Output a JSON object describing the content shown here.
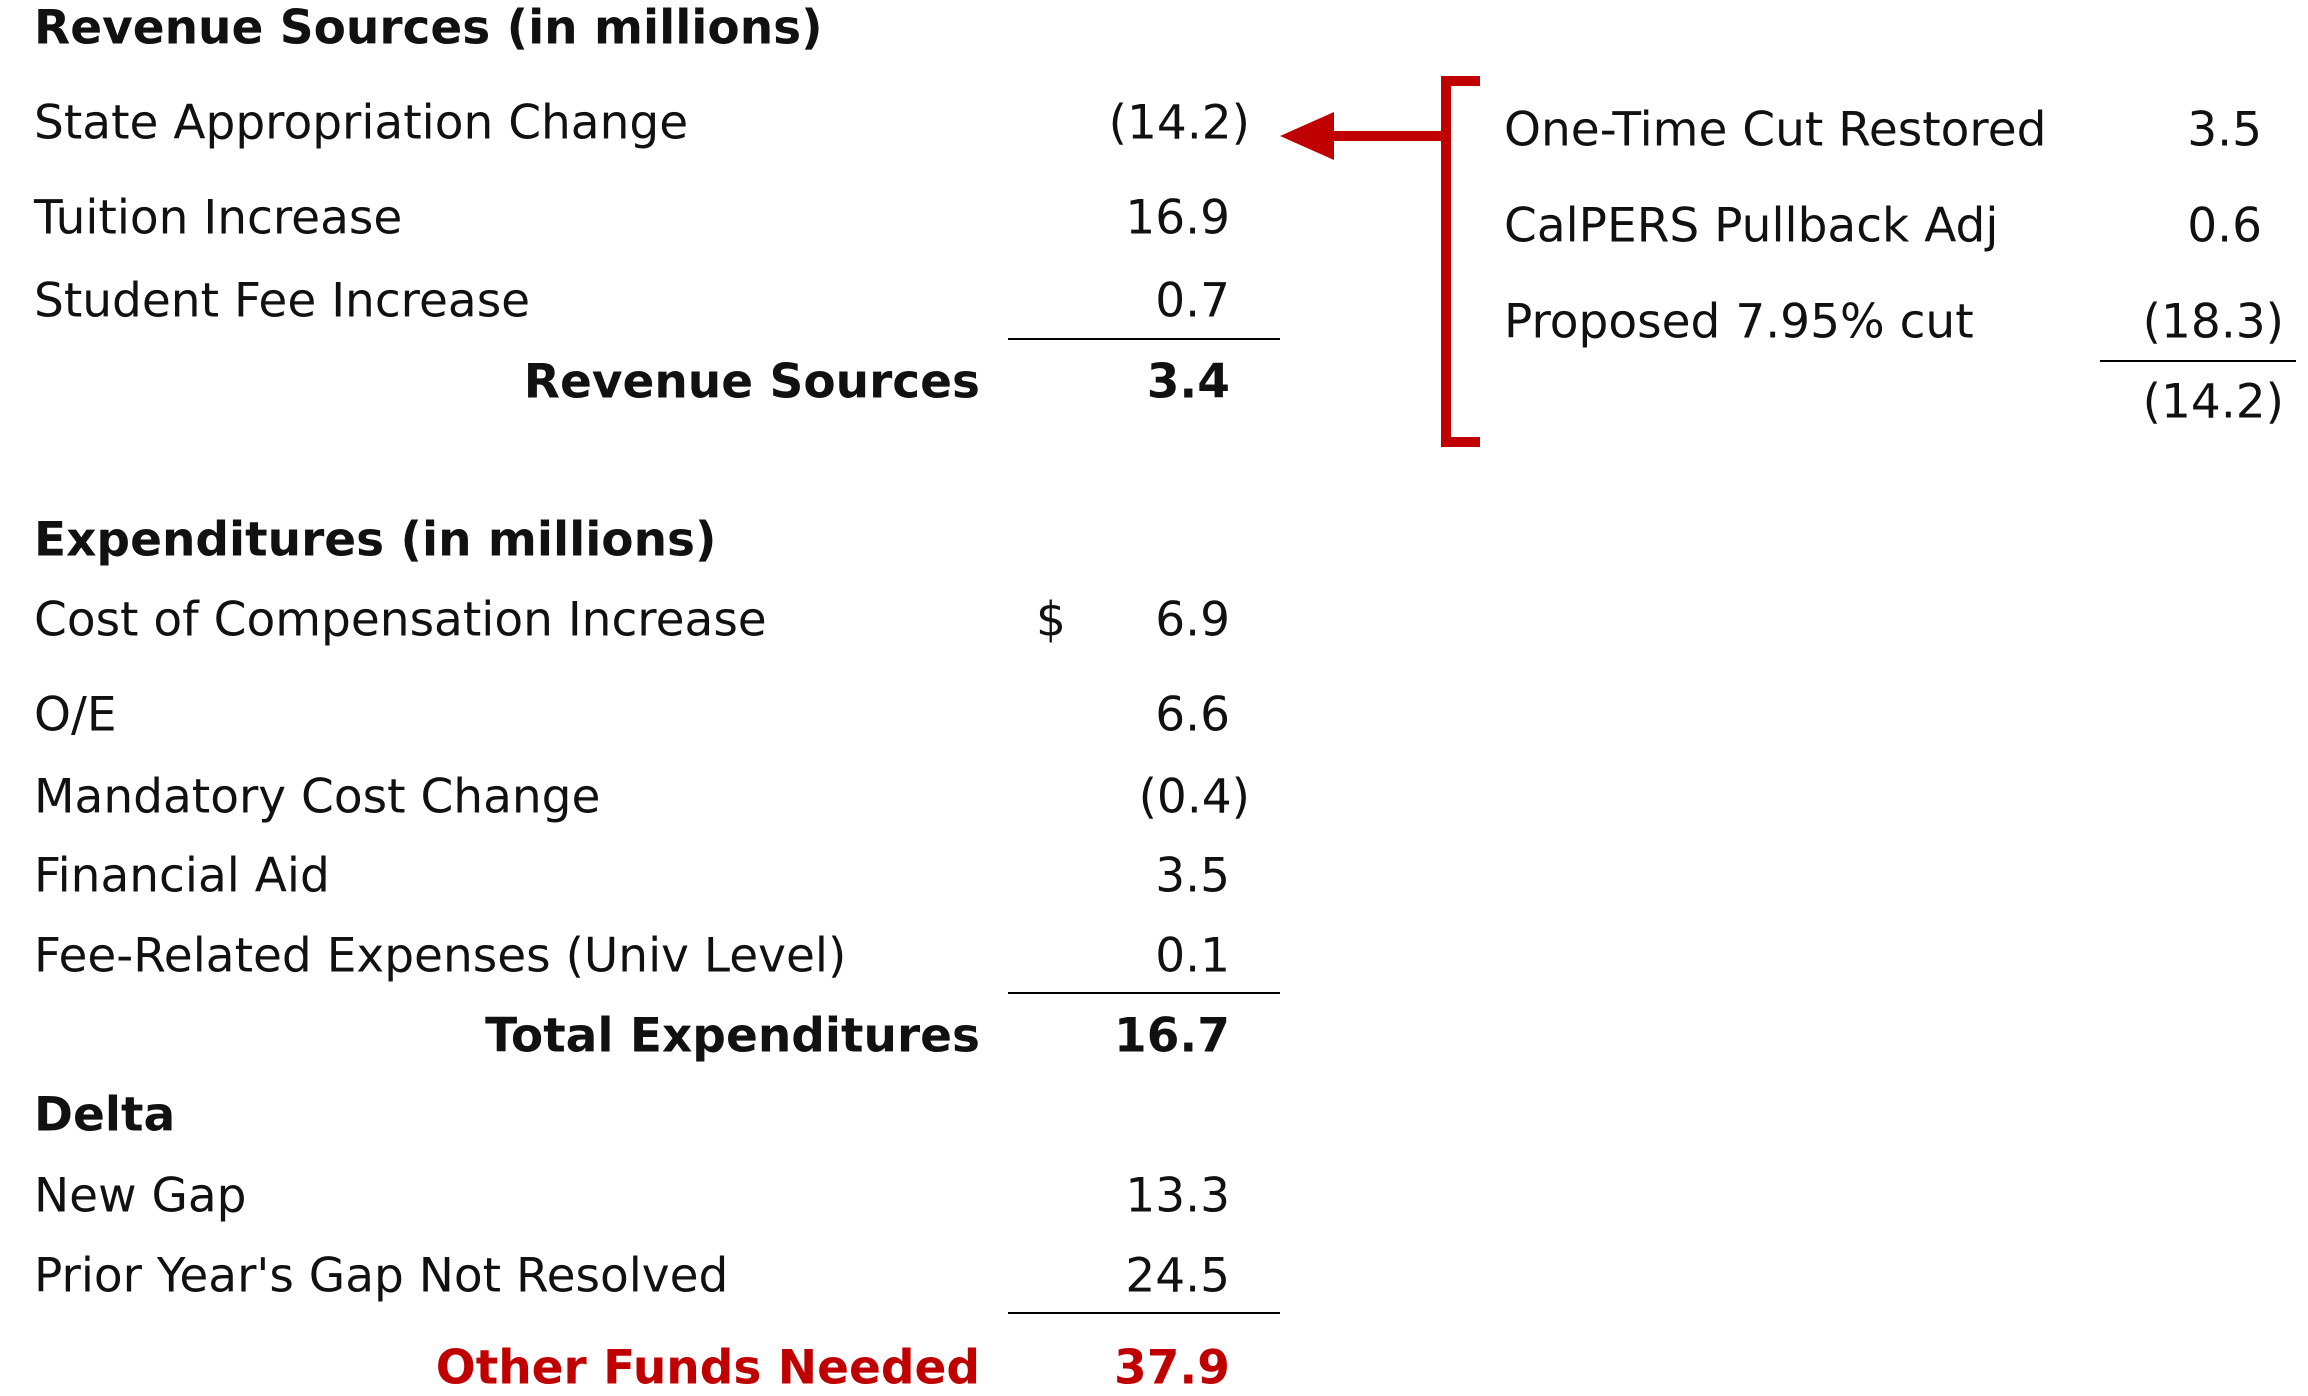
{
  "revenue": {
    "heading": "Revenue Sources (in millions)",
    "rows": [
      {
        "label": "State Appropriation Change",
        "value": "(14.2)"
      },
      {
        "label": "Tuition Increase",
        "value": "16.9"
      },
      {
        "label": "Student Fee Increase",
        "value": "0.7"
      }
    ],
    "total_label": "Revenue Sources",
    "total_value": "3.4"
  },
  "breakdown": {
    "rows": [
      {
        "label": "One-Time Cut Restored",
        "value": "3.5"
      },
      {
        "label": "CalPERS Pullback Adj",
        "value": "0.6"
      },
      {
        "label": "Proposed 7.95% cut",
        "value": "(18.3)"
      }
    ],
    "total_value": "(14.2)",
    "accent_color": "#c00000"
  },
  "expenditures": {
    "heading": "Expenditures (in millions)",
    "currency_symbol": "$",
    "rows": [
      {
        "label": "Cost of Compensation Increase",
        "value": "6.9"
      },
      {
        "label": "O/E",
        "value": "6.6"
      },
      {
        "label": "Mandatory Cost Change",
        "value": "(0.4)"
      },
      {
        "label": "Financial Aid",
        "value": "3.5"
      },
      {
        "label": "Fee-Related Expenses (Univ Level)",
        "value": "0.1"
      }
    ],
    "total_label": "Total Expenditures",
    "total_value": "16.7"
  },
  "delta": {
    "heading": "Delta",
    "rows": [
      {
        "label": "New Gap",
        "value": "13.3"
      },
      {
        "label": "Prior Year's Gap Not Resolved",
        "value": "24.5"
      }
    ],
    "total_label": "Other Funds Needed",
    "total_value": "37.9",
    "total_color": "#c00000"
  }
}
